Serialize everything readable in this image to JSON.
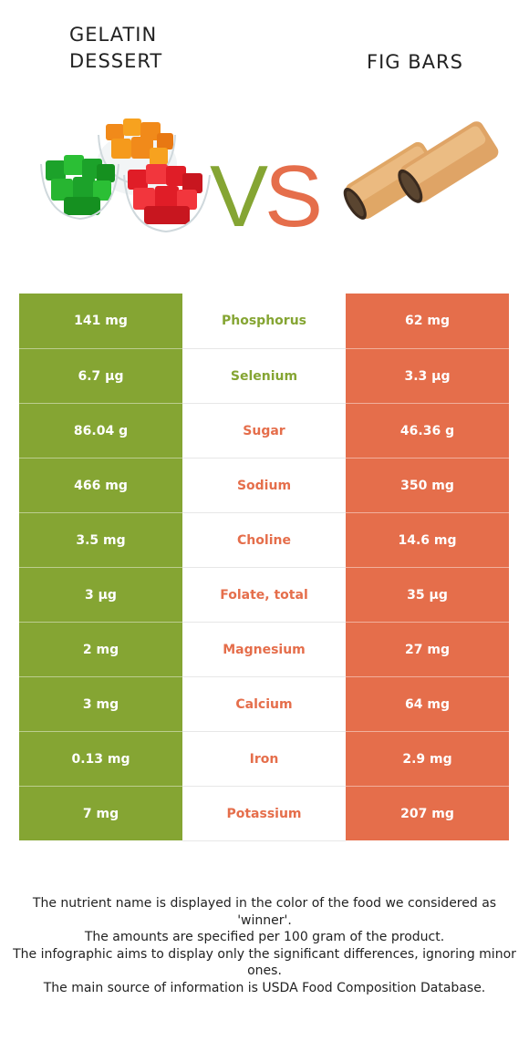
{
  "header": {
    "left_title_line1": "GELATIN",
    "left_title_line2": "DESSERT",
    "right_title": "FIG BARS",
    "vs_v": "V",
    "vs_s": "S"
  },
  "colors": {
    "winner_left": "#85a533",
    "winner_right": "#e56e4b"
  },
  "rows": [
    {
      "left": "141 mg",
      "nutrient": "Phosphorus",
      "right": "62 mg",
      "winner": "left"
    },
    {
      "left": "6.7 µg",
      "nutrient": "Selenium",
      "right": "3.3 µg",
      "winner": "left"
    },
    {
      "left": "86.04 g",
      "nutrient": "Sugar",
      "right": "46.36 g",
      "winner": "right"
    },
    {
      "left": "466 mg",
      "nutrient": "Sodium",
      "right": "350 mg",
      "winner": "right"
    },
    {
      "left": "3.5 mg",
      "nutrient": "Choline",
      "right": "14.6 mg",
      "winner": "right"
    },
    {
      "left": "3 µg",
      "nutrient": "Folate, total",
      "right": "35 µg",
      "winner": "right"
    },
    {
      "left": "2 mg",
      "nutrient": "Magnesium",
      "right": "27 mg",
      "winner": "right"
    },
    {
      "left": "3 mg",
      "nutrient": "Calcium",
      "right": "64 mg",
      "winner": "right"
    },
    {
      "left": "0.13 mg",
      "nutrient": "Iron",
      "right": "2.9 mg",
      "winner": "right"
    },
    {
      "left": "7 mg",
      "nutrient": "Potassium",
      "right": "207 mg",
      "winner": "right"
    }
  ],
  "notes": [
    "The nutrient name is displayed in the color of the food we considered as 'winner'.",
    "The amounts are specified per 100 gram of the product.",
    "The infographic aims to display only the significant differences, ignoring minor ones.",
    "The main source of information is USDA Food Composition Database."
  ]
}
